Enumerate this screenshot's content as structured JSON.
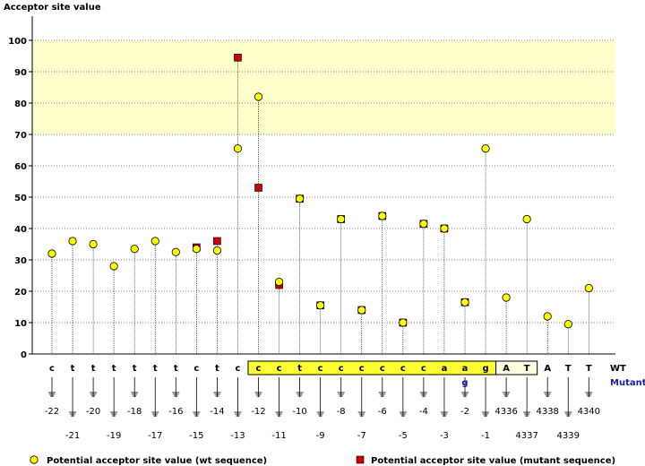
{
  "chart_data": {
    "type": "scatter",
    "ylabel": "Acceptor site value",
    "ylim": [
      0,
      100
    ],
    "yticks": [
      0,
      10,
      20,
      30,
      40,
      50,
      60,
      70,
      80,
      90,
      100
    ],
    "highlight_band": [
      70,
      100
    ],
    "grid": true,
    "legend_position": "bottom",
    "columns": [
      {
        "pos": "-22",
        "wt": "c",
        "wt_value": 32
      },
      {
        "pos": "-21",
        "wt": "t",
        "wt_value": 36
      },
      {
        "pos": "-20",
        "wt": "t",
        "wt_value": 35
      },
      {
        "pos": "-19",
        "wt": "t",
        "wt_value": 28
      },
      {
        "pos": "-18",
        "wt": "t",
        "wt_value": 33.5
      },
      {
        "pos": "-17",
        "wt": "t",
        "wt_value": 36
      },
      {
        "pos": "-16",
        "wt": "t",
        "wt_value": 32.5
      },
      {
        "pos": "-15",
        "wt": "c",
        "wt_value": 33.5,
        "mut_value": 34
      },
      {
        "pos": "-14",
        "wt": "t",
        "wt_value": 33,
        "mut_value": 36
      },
      {
        "pos": "-13",
        "wt": "c",
        "wt_value": 65.5,
        "mut_value": 94.5
      },
      {
        "pos": "-12",
        "wt": "c",
        "wt_value": 82,
        "mut_value": 53,
        "boxed": true
      },
      {
        "pos": "-11",
        "wt": "c",
        "wt_value": 23,
        "mut_value": 22,
        "boxed": true
      },
      {
        "pos": "-10",
        "wt": "t",
        "wt_value": 49.5,
        "mut_value": 49.5,
        "boxed": true
      },
      {
        "pos": "-9",
        "wt": "c",
        "wt_value": 15.5,
        "mut_value": 15.5,
        "boxed": true
      },
      {
        "pos": "-8",
        "wt": "c",
        "wt_value": 43,
        "mut_value": 43,
        "boxed": true
      },
      {
        "pos": "-7",
        "wt": "c",
        "wt_value": 14,
        "mut_value": 14,
        "boxed": true
      },
      {
        "pos": "-6",
        "wt": "c",
        "wt_value": 44,
        "mut_value": 44,
        "boxed": true
      },
      {
        "pos": "-5",
        "wt": "c",
        "wt_value": 10,
        "mut_value": 10,
        "boxed": true
      },
      {
        "pos": "-4",
        "wt": "c",
        "wt_value": 41.5,
        "mut_value": 41.5,
        "boxed": true
      },
      {
        "pos": "-3",
        "wt": "a",
        "wt_value": 40,
        "mut_value": 40,
        "boxed": true
      },
      {
        "pos": "-2",
        "wt": "a",
        "wt_value": 16.5,
        "mut_value": 16.5,
        "mut": "g",
        "boxed": true
      },
      {
        "pos": "-1",
        "wt": "g",
        "wt_value": 65.5,
        "boxed": true
      },
      {
        "pos": "4336",
        "wt": "A",
        "wt_value": 18,
        "boxed": true
      },
      {
        "pos": "4337",
        "wt": "T",
        "wt_value": 43,
        "boxed": true
      },
      {
        "pos": "4338",
        "wt": "A",
        "wt_value": 12
      },
      {
        "pos": "4339",
        "wt": "T",
        "wt_value": 9.5
      },
      {
        "pos": "4340",
        "wt": "T",
        "wt_value": 21
      }
    ],
    "row_labels": {
      "wt": "WT",
      "mutant": "Mutant"
    },
    "legend": {
      "wt": "Potential acceptor site value (wt sequence)",
      "mutant": "Potential acceptor site value (mutant sequence)"
    },
    "colors": {
      "wt_marker": "#ffff00",
      "mut_marker": "#cc0000",
      "band": "#ffffcc",
      "box": "#ffff33",
      "mutant_text": "#1a1aa6"
    }
  }
}
